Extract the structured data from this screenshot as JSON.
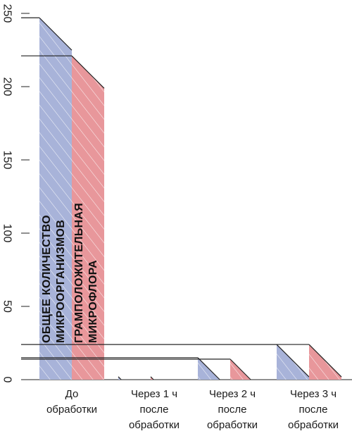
{
  "chart_data": {
    "type": "bar",
    "title": "",
    "xlabel": "",
    "ylabel": "",
    "ylim": [
      0,
      250
    ],
    "yticks": [
      0,
      50,
      100,
      150,
      200,
      250
    ],
    "grid": false,
    "legend": "none",
    "categories": [
      [
        "До",
        "обработки"
      ],
      [
        "Через 1 ч",
        "после",
        "обработки"
      ],
      [
        "Через 2 ч",
        "после",
        "обработки"
      ],
      [
        "Через 3 ч",
        "после",
        "обработки"
      ]
    ],
    "series": [
      {
        "color": "#a8b3d9",
        "label_lines": [
          "ОБЩЕЕ КОЛИЧЕСТВО",
          "МИКРООРГАНИЗМОВ"
        ],
        "values": [
          247,
          2,
          15,
          24
        ]
      },
      {
        "color": "#e8979b",
        "label_lines": [
          "ГРАМПОЛОЖИТЕЛЬНАЯ",
          "МИКРОФЛОРА"
        ],
        "values": [
          221,
          2,
          14,
          24
        ]
      }
    ]
  }
}
